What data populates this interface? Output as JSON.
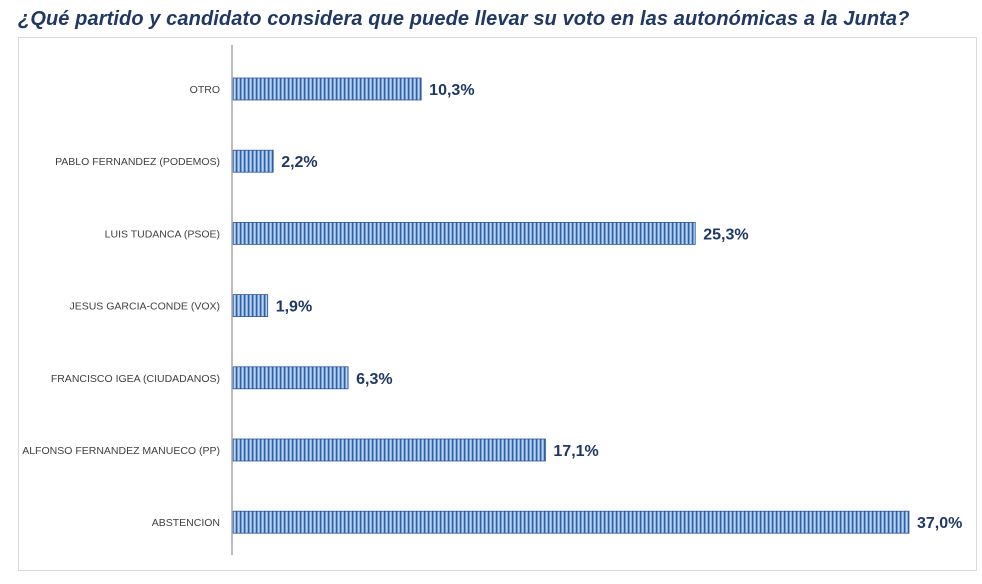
{
  "chart_data": {
    "type": "bar",
    "orientation": "horizontal",
    "title": "¿Qué partido y candidato considera que puede llevar su voto en las autonómicas a la Junta?",
    "categories": [
      "OTRO",
      "PABLO FERNANDEZ (PODEMOS)",
      "LUIS TUDANCA (PSOE)",
      "JESUS GARCIA-CONDE (VOX)",
      "FRANCISCO IGEA (CIUDADANOS)",
      "ALFONSO FERNANDEZ MANUECO (PP)",
      "ABSTENCION"
    ],
    "values": [
      10.3,
      2.2,
      25.3,
      1.9,
      6.3,
      17.1,
      37.0
    ],
    "value_labels": [
      "10,3%",
      "2,2%",
      "25,3%",
      "1,9%",
      "6,3%",
      "17,1%",
      "37,0%"
    ],
    "xlabel": "",
    "ylabel": "",
    "xlim": [
      0,
      40
    ],
    "grid": false,
    "legend": "none",
    "colors": {
      "bar": "#5b8fd0",
      "bar_stripe": "#2f5597",
      "label": "#1f3864",
      "axis": "#a6a6a6"
    }
  }
}
